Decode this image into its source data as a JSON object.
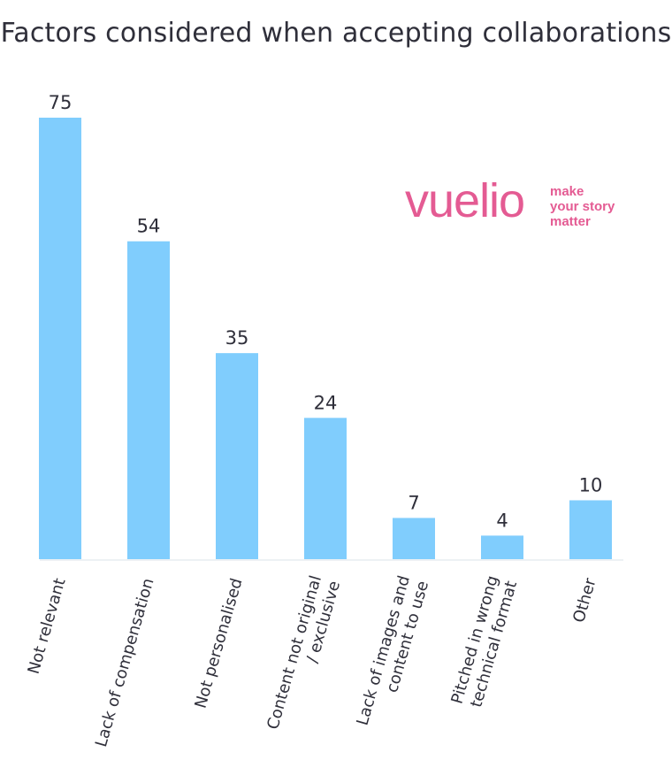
{
  "chart_data": {
    "type": "bar",
    "title": "Factors considered when accepting collaborations",
    "categories": [
      [
        "Not relevant"
      ],
      [
        "Lack of compensation"
      ],
      [
        "Not personalised"
      ],
      [
        "Content not original",
        "/ exclusive"
      ],
      [
        "Lack of images and",
        "content to use"
      ],
      [
        "Pitched in wrong",
        "technical format"
      ],
      [
        "Other"
      ]
    ],
    "values": [
      75,
      54,
      35,
      24,
      7,
      4,
      10
    ],
    "data_labels": [
      "75",
      "54",
      "35",
      "24",
      "7",
      "4",
      "10"
    ],
    "ylim": [
      0,
      75
    ],
    "grid": false,
    "bar_color": "#80cdfd",
    "axis_color": "#dbe3ea",
    "text_color": "#2f2f3a"
  },
  "branding": {
    "word": "vuelio",
    "tagline": [
      "make",
      "your story",
      "matter"
    ],
    "color": "#e45b93"
  }
}
